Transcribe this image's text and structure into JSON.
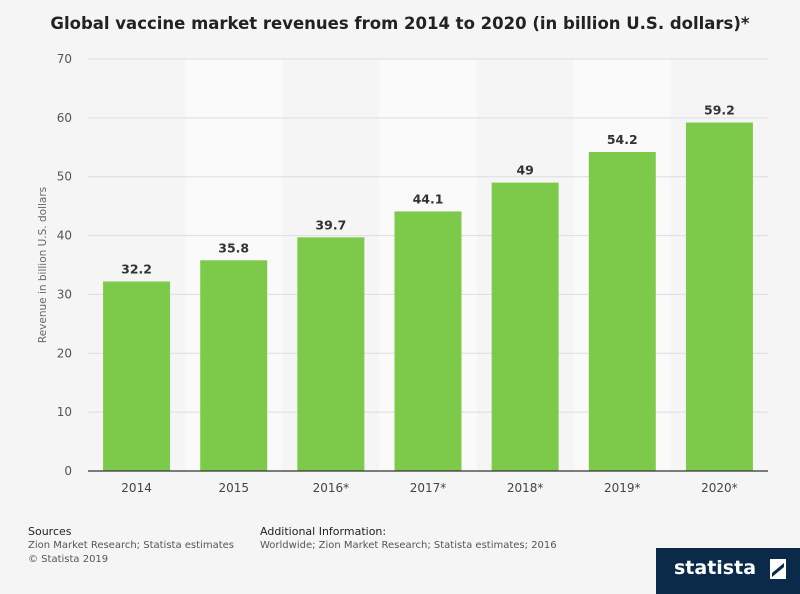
{
  "title": "Global vaccine market revenues from 2014 to 2020 (in billion U.S. dollars)*",
  "chart_data": {
    "type": "bar",
    "title": "Global vaccine market revenues from 2014 to 2020 (in billion U.S. dollars)*",
    "xlabel": "",
    "ylabel": "Revenue in billion U.S. dollars",
    "categories": [
      "2014",
      "2015",
      "2016*",
      "2017*",
      "2018*",
      "2019*",
      "2020*"
    ],
    "values": [
      32.2,
      35.8,
      39.7,
      44.1,
      49,
      54.2,
      59.2
    ],
    "value_labels": [
      "32.2",
      "35.8",
      "39.7",
      "44.1",
      "49",
      "54.2",
      "59.2"
    ],
    "ylim": [
      0,
      70
    ],
    "yticks": [
      "0",
      "10",
      "20",
      "30",
      "40",
      "50",
      "60",
      "70"
    ],
    "ytick_values": [
      0,
      10,
      20,
      30,
      40,
      50,
      60,
      70
    ],
    "grid": true,
    "bar_color": "#7dc94a"
  },
  "footer": {
    "sources_heading": "Sources",
    "sources_line1": "Zion Market Research; Statista estimates",
    "sources_line2": "© Statista 2019",
    "additional_heading": "Additional Information:",
    "additional_line1": "Worldwide; Zion Market Research; Statista estimates; 2016"
  },
  "logo": {
    "text": "statista"
  }
}
